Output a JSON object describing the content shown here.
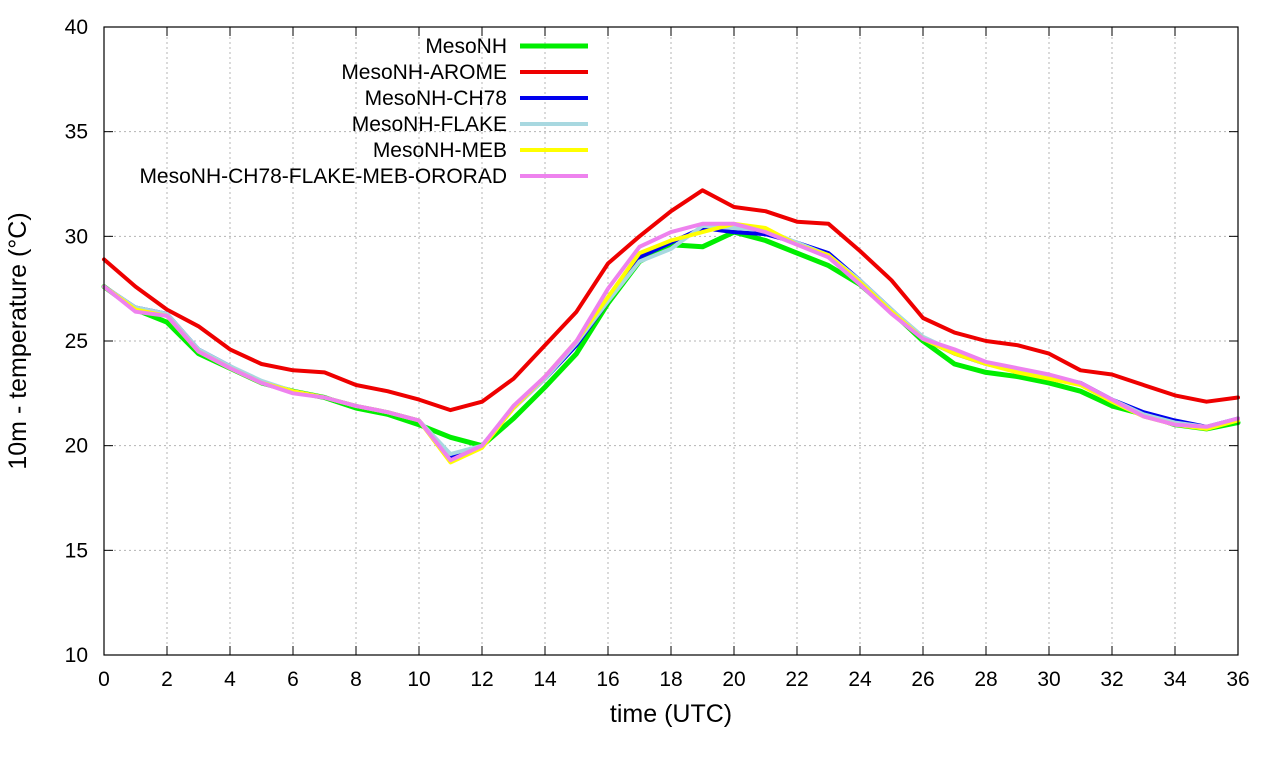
{
  "chart_data": {
    "type": "line",
    "title": "",
    "xlabel": "time (UTC)",
    "ylabel": "10m - temperature (°C)",
    "xlim": [
      0,
      36
    ],
    "ylim": [
      10,
      40
    ],
    "xticks": [
      0,
      2,
      4,
      6,
      8,
      10,
      12,
      14,
      16,
      18,
      20,
      22,
      24,
      26,
      28,
      30,
      32,
      34,
      36
    ],
    "yticks": [
      10,
      15,
      20,
      25,
      30,
      35,
      40
    ],
    "grid": true,
    "legend_position": "top-left",
    "x": [
      0,
      1,
      2,
      3,
      4,
      5,
      6,
      7,
      8,
      9,
      10,
      11,
      12,
      13,
      14,
      15,
      16,
      17,
      18,
      19,
      20,
      21,
      22,
      23,
      24,
      25,
      26,
      27,
      28,
      29,
      30,
      31,
      32,
      33,
      34,
      35,
      36
    ],
    "series": [
      {
        "name": "MesoNH",
        "color": "#00ee00",
        "width": 5,
        "values": [
          27.6,
          26.5,
          25.9,
          24.4,
          23.7,
          23.0,
          22.6,
          22.3,
          21.8,
          21.5,
          21.0,
          20.4,
          20.0,
          21.3,
          22.8,
          24.4,
          26.8,
          28.8,
          29.6,
          29.5,
          30.2,
          29.8,
          29.2,
          28.6,
          27.7,
          26.4,
          25.0,
          23.9,
          23.5,
          23.3,
          23.0,
          22.6,
          21.9,
          21.5,
          21.0,
          20.8,
          21.1
        ]
      },
      {
        "name": "MesoNH-AROME",
        "color": "#ee0000",
        "width": 4,
        "values": [
          28.9,
          27.6,
          26.5,
          25.7,
          24.6,
          23.9,
          23.6,
          23.5,
          22.9,
          22.6,
          22.2,
          21.7,
          22.1,
          23.2,
          24.8,
          26.4,
          28.7,
          30.0,
          31.2,
          32.2,
          31.4,
          31.2,
          30.7,
          30.6,
          29.3,
          27.9,
          26.1,
          25.4,
          25.0,
          24.8,
          24.4,
          23.6,
          23.4,
          22.9,
          22.4,
          22.1,
          22.3
        ]
      },
      {
        "name": "MesoNH-CH78",
        "color": "#0000ee",
        "width": 4,
        "values": [
          27.6,
          26.6,
          26.3,
          24.6,
          23.8,
          23.0,
          22.6,
          22.3,
          21.9,
          21.6,
          21.2,
          19.4,
          20.0,
          21.8,
          23.2,
          24.8,
          26.9,
          29.0,
          29.7,
          30.4,
          30.2,
          30.1,
          29.7,
          29.2,
          27.9,
          26.5,
          25.1,
          24.4,
          23.9,
          23.6,
          23.3,
          23.0,
          22.2,
          21.6,
          21.2,
          20.9,
          21.3
        ]
      },
      {
        "name": "MesoNH-FLAKE",
        "color": "#a8d8e0",
        "width": 4,
        "values": [
          27.6,
          26.6,
          26.3,
          24.6,
          23.8,
          23.1,
          22.6,
          22.3,
          21.9,
          21.6,
          21.2,
          19.6,
          20.0,
          21.8,
          23.2,
          24.9,
          26.9,
          28.8,
          29.4,
          30.5,
          30.4,
          30.3,
          29.7,
          29.1,
          27.9,
          26.5,
          25.2,
          24.5,
          23.9,
          23.6,
          23.3,
          22.9,
          22.2,
          21.5,
          21.1,
          20.9,
          21.3
        ]
      },
      {
        "name": "MesoNH-MEB",
        "color": "#ffff00",
        "width": 4,
        "values": [
          27.6,
          26.5,
          26.2,
          24.5,
          23.7,
          23.0,
          22.6,
          22.3,
          21.9,
          21.6,
          21.2,
          19.2,
          19.9,
          21.8,
          23.3,
          25.0,
          27.1,
          29.2,
          29.8,
          30.2,
          30.6,
          30.4,
          29.6,
          29.1,
          27.8,
          26.4,
          25.1,
          24.4,
          23.9,
          23.5,
          23.2,
          22.9,
          22.1,
          21.4,
          21.0,
          20.8,
          21.2
        ]
      },
      {
        "name": "MesoNH-CH78-FLAKE-MEB-ORORAD",
        "color": "#ee82ee",
        "width": 4,
        "values": [
          27.6,
          26.4,
          26.2,
          24.5,
          23.7,
          23.0,
          22.5,
          22.3,
          21.9,
          21.6,
          21.2,
          19.3,
          20.0,
          21.9,
          23.3,
          25.0,
          27.5,
          29.5,
          30.2,
          30.6,
          30.6,
          30.2,
          29.6,
          29.0,
          27.7,
          26.3,
          25.1,
          24.6,
          24.0,
          23.7,
          23.4,
          23.0,
          22.2,
          21.4,
          21.0,
          20.9,
          21.3
        ]
      }
    ]
  }
}
